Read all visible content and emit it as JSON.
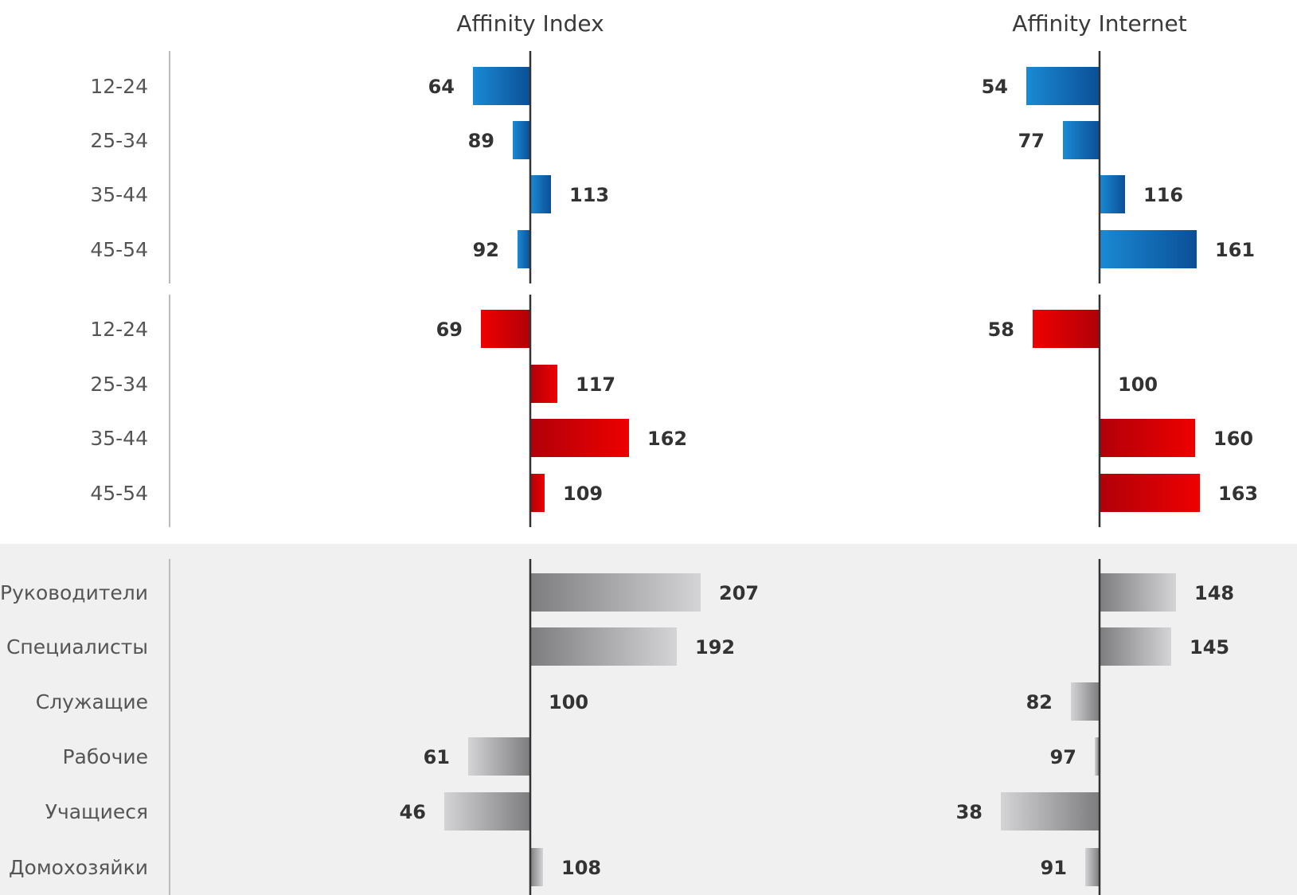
{
  "chart_data": {
    "type": "bar",
    "baseline": 100,
    "columns": [
      {
        "title": "Affinity Index"
      },
      {
        "title": "Affinity Internet"
      }
    ],
    "groups": [
      {
        "color": "blue",
        "categories": [
          "12-24",
          "25-34",
          "35-44",
          "45-54"
        ],
        "series": [
          {
            "values": [
              64,
              89,
              113,
              92
            ]
          },
          {
            "values": [
              54,
              77,
              116,
              161
            ]
          }
        ]
      },
      {
        "color": "red",
        "categories": [
          "12-24",
          "25-34",
          "35-44",
          "45-54"
        ],
        "series": [
          {
            "values": [
              69,
              117,
              162,
              109
            ]
          },
          {
            "values": [
              58,
              100,
              160,
              163
            ]
          }
        ]
      },
      {
        "color": "gray",
        "categories": [
          "Руководители",
          "Специалисты",
          "Служащие",
          "Рабочие",
          "Учащиеся",
          "Домохозяйки"
        ],
        "series": [
          {
            "values": [
              207,
              192,
              100,
              61,
              46,
              108
            ]
          },
          {
            "values": [
              148,
              145,
              82,
              97,
              38,
              91
            ]
          }
        ]
      }
    ],
    "colors": {
      "blue_light": "#1a8ad4",
      "blue_dark": "#0b4f96",
      "red_light": "#ee0000",
      "red_dark": "#b00008",
      "gray_light": "#d4d4d6",
      "gray_dark": "#7d7d80",
      "axis": "#333333",
      "group_divider": "#bbbbbb",
      "band_background": "#f0f0f0"
    }
  }
}
